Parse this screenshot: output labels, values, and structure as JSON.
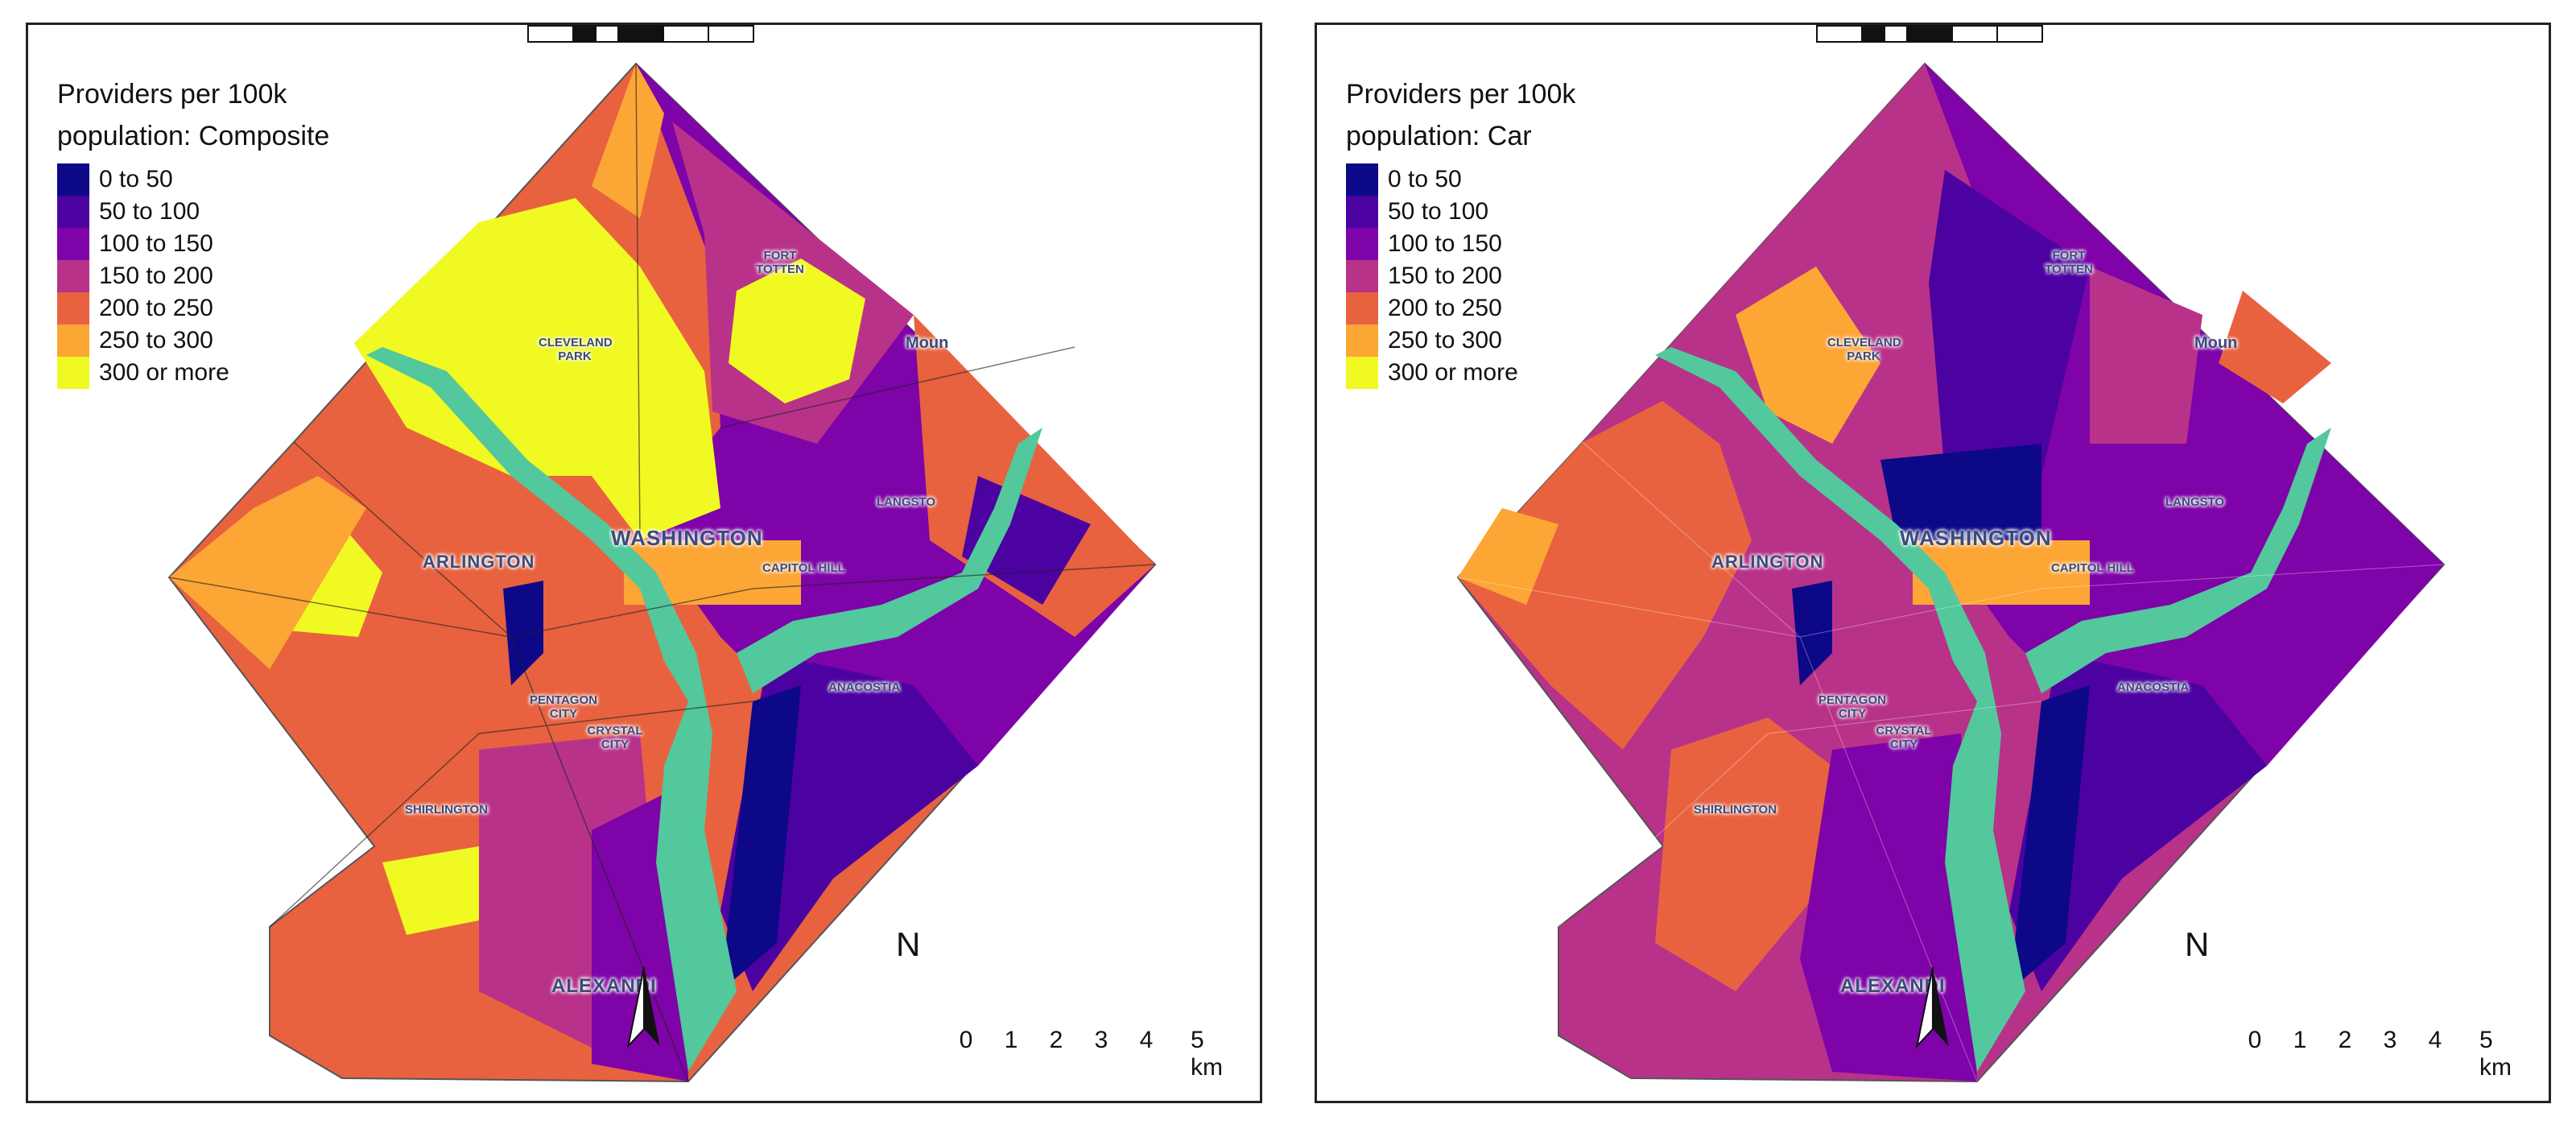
{
  "panels": [
    {
      "legend_title_line1": "Providers per 100k",
      "legend_title_line2": "population: Composite",
      "mode": "composite"
    },
    {
      "legend_title_line1": "Providers per 100k",
      "legend_title_line2": "population: Car",
      "mode": "car"
    }
  ],
  "legend": {
    "items": [
      {
        "label": "0 to 50",
        "color": "#0d0887"
      },
      {
        "label": "50 to 100",
        "color": "#4c02a1"
      },
      {
        "label": "100 to 150",
        "color": "#7e03a8"
      },
      {
        "label": "150 to 200",
        "color": "#b83289"
      },
      {
        "label": "200 to 250",
        "color": "#e8623f"
      },
      {
        "label": "250 to 300",
        "color": "#fca636"
      },
      {
        "label": "300 or more",
        "color": "#f0f921"
      }
    ]
  },
  "water_color": "#52c89c",
  "place_labels": {
    "washington": "WASHINGTON",
    "arlington": "ARLINGTON",
    "alexandria": "ALEXANDI",
    "capitol_hill": "CAPITOL HILL",
    "anacostia": "ANACOSTIA",
    "pentagon_city": "PENTAGON CITY",
    "crystal_city": "CRYSTAL CITY",
    "shirlington": "SHIRLINGTON",
    "langston": "LANGSTO",
    "cleveland_park": "CLEVELAND PARK",
    "fort_totten": "FORT TOTTEN",
    "mount": "Moun"
  },
  "north_arrow": {
    "label": "N"
  },
  "scale": {
    "ticks": [
      "0",
      "1",
      "2",
      "3",
      "4",
      "5 km"
    ]
  }
}
